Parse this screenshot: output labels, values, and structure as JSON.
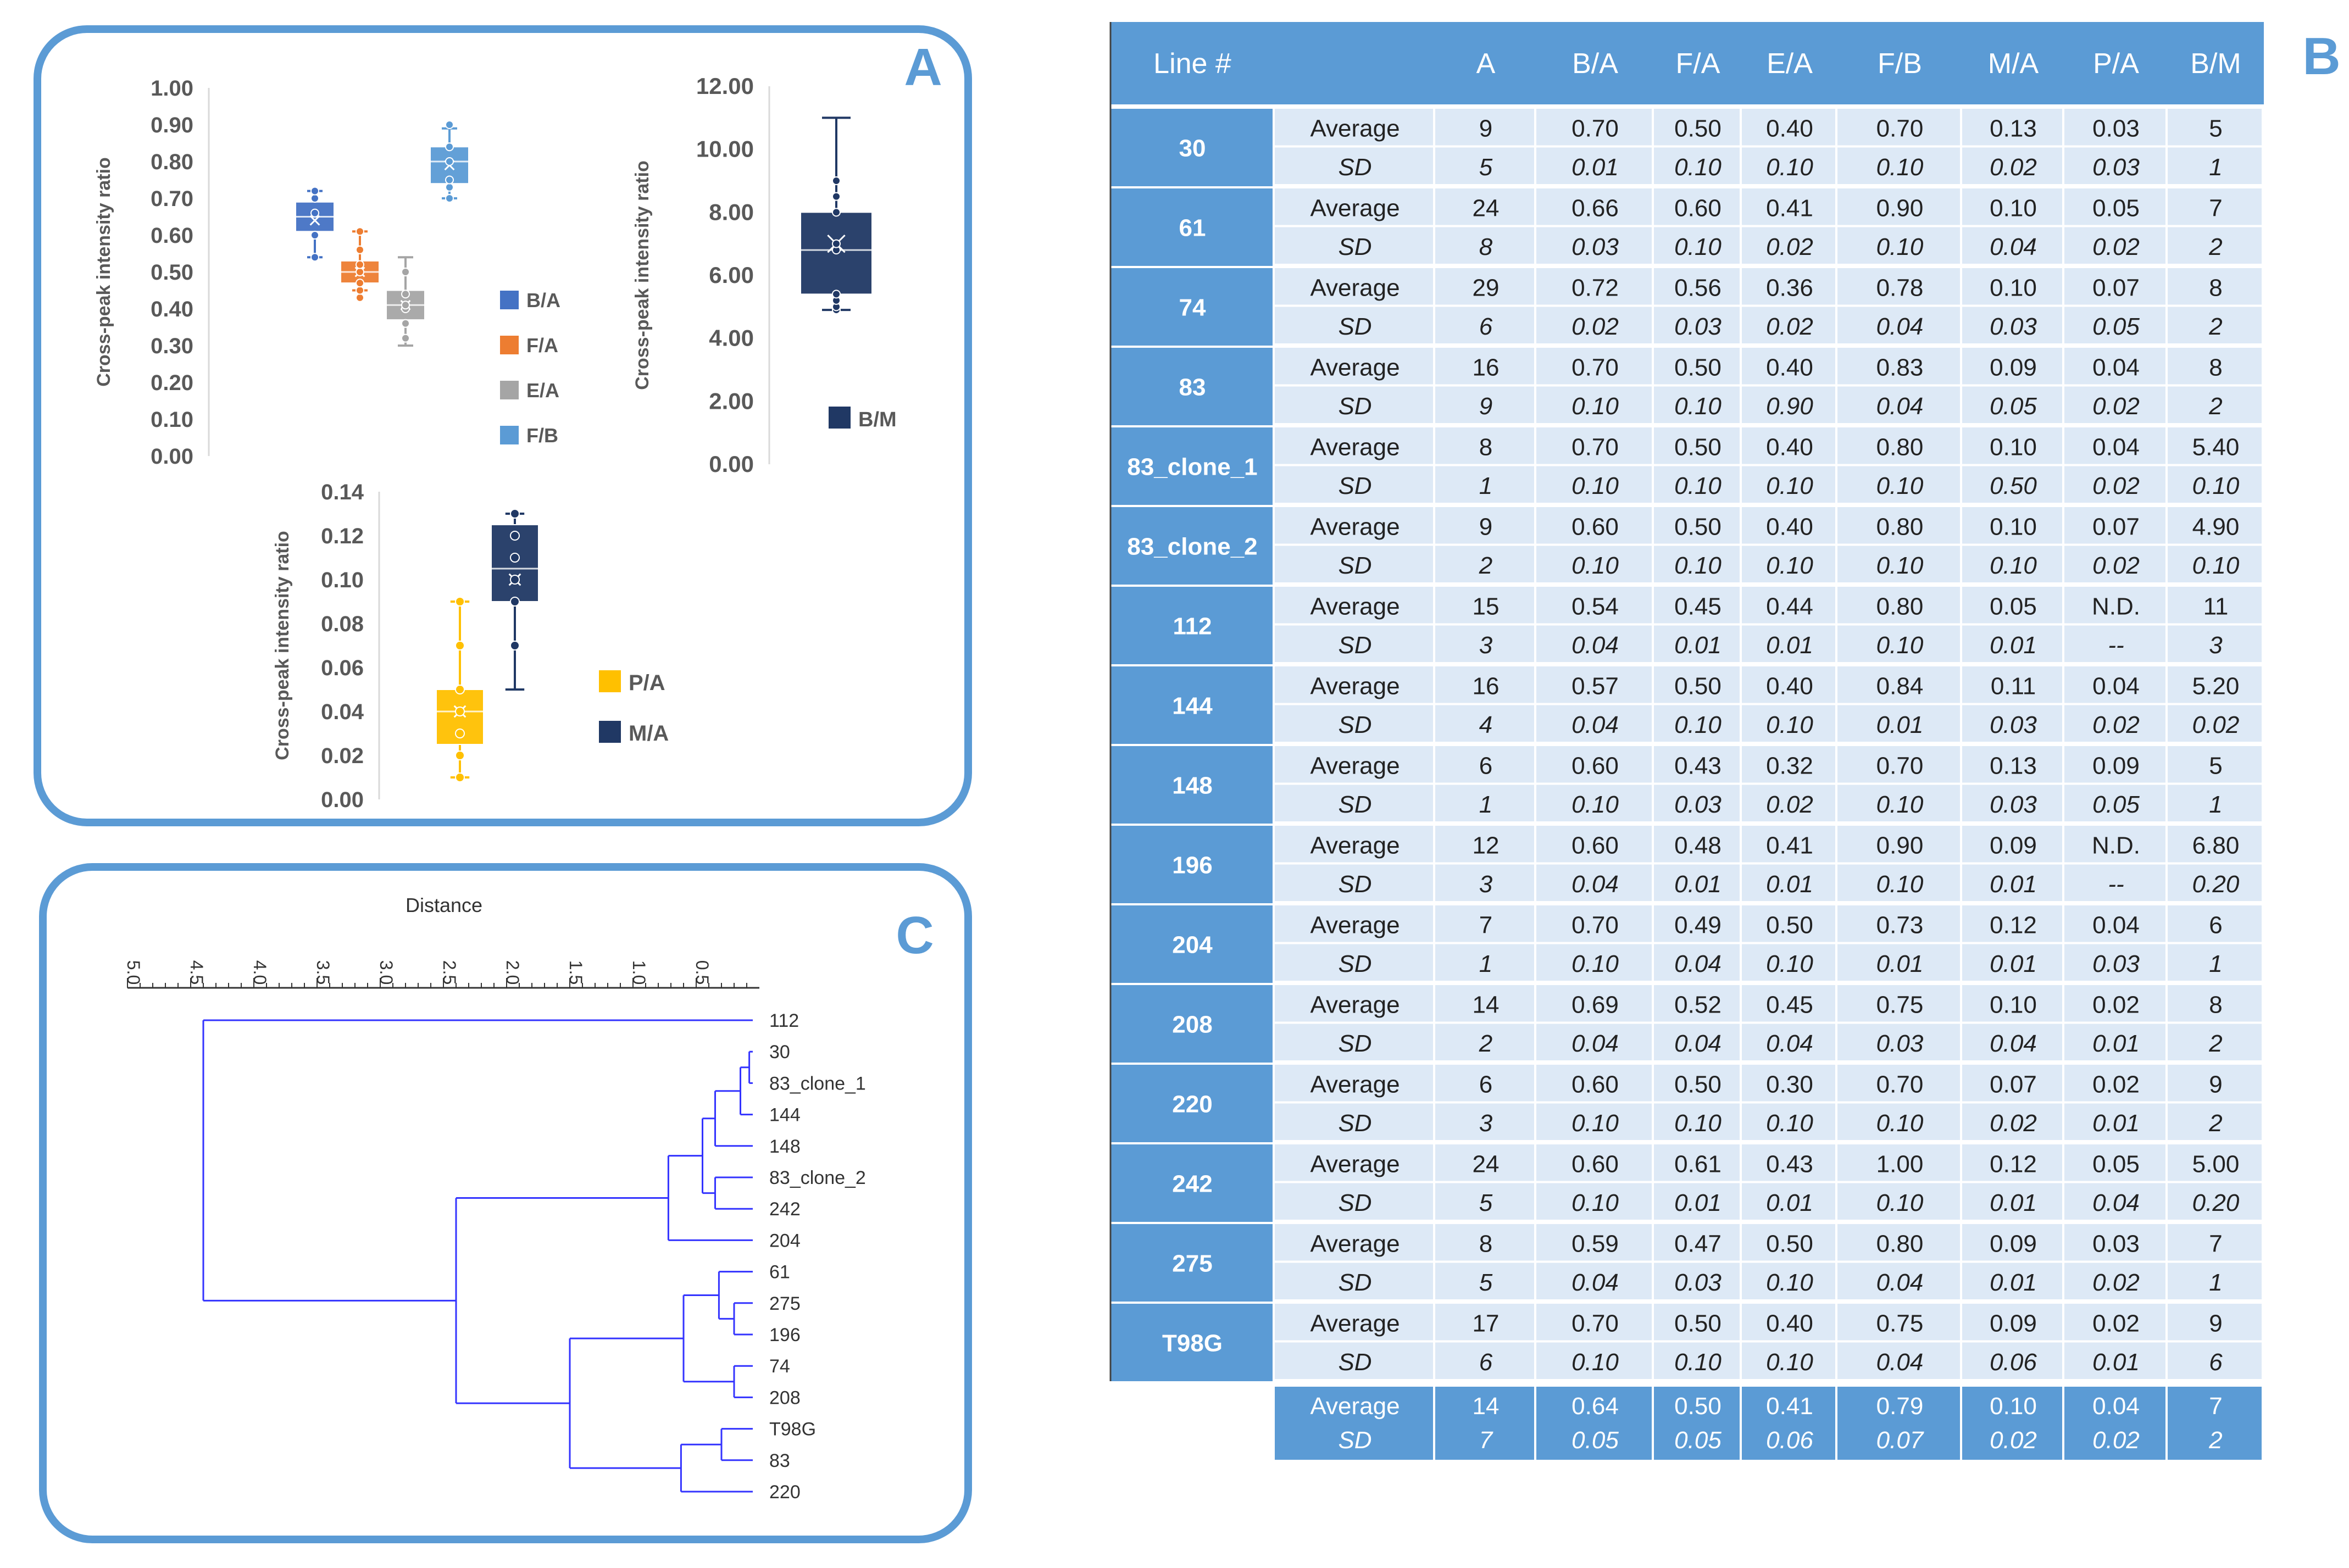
{
  "colors": {
    "panel_border": "#5b9bd5",
    "header_blue": "#5b9bd5",
    "row_light": "#dde9f6",
    "dendrogram_line": "#3333ff",
    "axis_gray": "#7f7f7f",
    "text_dark": "#595959",
    "panel_letter": "#5b9bd5",
    "ba": "#4472c4",
    "fa": "#ed7d31",
    "ea": "#a5a5a5",
    "fb": "#5b9bd5",
    "bm": "#203864",
    "pa": "#ffc000",
    "ma": "#203864"
  },
  "panel_labels": {
    "a": "A",
    "b": "B",
    "c": "C"
  },
  "chart_data": [
    {
      "id": "panel-a-ratios",
      "type": "box",
      "ylabel": "Cross-peak intensity ratio",
      "ylim": [
        0,
        1
      ],
      "yticks": [
        "0.00",
        "0.10",
        "0.20",
        "0.30",
        "0.40",
        "0.50",
        "0.60",
        "0.70",
        "0.80",
        "0.90",
        "1.00"
      ],
      "legend": [
        "B/A",
        "F/A",
        "E/A",
        "F/B"
      ],
      "series": [
        {
          "name": "B/A",
          "min": 0.54,
          "q1": 0.61,
          "median": 0.65,
          "q3": 0.69,
          "max": 0.72,
          "mean": 0.64,
          "points": [
            0.54,
            0.6,
            0.66,
            0.7,
            0.72
          ]
        },
        {
          "name": "F/A",
          "min": 0.45,
          "q1": 0.47,
          "median": 0.5,
          "q3": 0.53,
          "max": 0.61,
          "mean": 0.5,
          "points": [
            0.43,
            0.45,
            0.47,
            0.5,
            0.52,
            0.56,
            0.61
          ]
        },
        {
          "name": "E/A",
          "min": 0.3,
          "q1": 0.37,
          "median": 0.41,
          "q3": 0.45,
          "max": 0.54,
          "mean": 0.41,
          "points": [
            0.32,
            0.36,
            0.4,
            0.41,
            0.44,
            0.5
          ]
        },
        {
          "name": "F/B",
          "min": 0.7,
          "q1": 0.74,
          "median": 0.8,
          "q3": 0.84,
          "max": 0.89,
          "mean": 0.79,
          "points": [
            0.7,
            0.73,
            0.75,
            0.8,
            0.84,
            0.9
          ]
        }
      ]
    },
    {
      "id": "panel-a-bm",
      "type": "box",
      "ylabel": "Cross-peak intensity ratio",
      "ylim": [
        0,
        12
      ],
      "yticks": [
        "0.00",
        "2.00",
        "4.00",
        "6.00",
        "8.00",
        "10.00",
        "12.00"
      ],
      "legend": [
        "B/M"
      ],
      "series": [
        {
          "name": "B/M",
          "min": 4.9,
          "q1": 5.4,
          "median": 6.8,
          "q3": 8.0,
          "max": 11.0,
          "mean": 7.0,
          "points": [
            4.9,
            5.0,
            5.2,
            5.4,
            6.8,
            7.0,
            8.0,
            8.5,
            9.0
          ]
        }
      ]
    },
    {
      "id": "panel-a-small",
      "type": "box",
      "ylabel": "Cross-peak intensity ratio",
      "ylim": [
        0,
        0.14
      ],
      "yticks": [
        "0.00",
        "0.02",
        "0.04",
        "0.06",
        "0.08",
        "0.10",
        "0.12",
        "0.14"
      ],
      "legend": [
        "P/A",
        "M/A"
      ],
      "series": [
        {
          "name": "P/A",
          "min": 0.01,
          "q1": 0.025,
          "median": 0.04,
          "q3": 0.05,
          "max": 0.09,
          "mean": 0.04,
          "points": [
            0.01,
            0.02,
            0.03,
            0.04,
            0.05,
            0.07,
            0.09
          ]
        },
        {
          "name": "M/A",
          "min": 0.05,
          "q1": 0.09,
          "median": 0.105,
          "q3": 0.125,
          "max": 0.13,
          "mean": 0.1,
          "points": [
            0.07,
            0.09,
            0.1,
            0.11,
            0.12,
            0.13
          ]
        }
      ]
    },
    {
      "id": "panel-c-dendrogram",
      "type": "dendrogram",
      "xlabel": "Distance",
      "xlim": [
        0,
        5
      ],
      "xticks": [
        "5.0",
        "4.5",
        "4.0",
        "3.5",
        "3.0",
        "2.5",
        "2.0",
        "1.5",
        "1.0",
        "0.5"
      ],
      "leaves": [
        "112",
        "30",
        "83_clone_1",
        "144",
        "148",
        "83_clone_2",
        "242",
        "204",
        "61",
        "275",
        "196",
        "74",
        "208",
        "T98G",
        "83",
        "220"
      ]
    }
  ],
  "table": {
    "columns": [
      "Line #",
      "",
      "A",
      "B/A",
      "F/A",
      "E/A",
      "F/B",
      "M/A",
      "P/A",
      "B/M"
    ],
    "rows": [
      {
        "line": "30",
        "avg": [
          "9",
          "0.70",
          "0.50",
          "0.40",
          "0.70",
          "0.13",
          "0.03",
          "5"
        ],
        "sd": [
          "5",
          "0.01",
          "0.10",
          "0.10",
          "0.10",
          "0.02",
          "0.03",
          "1"
        ]
      },
      {
        "line": "61",
        "avg": [
          "24",
          "0.66",
          "0.60",
          "0.41",
          "0.90",
          "0.10",
          "0.05",
          "7"
        ],
        "sd": [
          "8",
          "0.03",
          "0.10",
          "0.02",
          "0.10",
          "0.04",
          "0.02",
          "2"
        ]
      },
      {
        "line": "74",
        "avg": [
          "29",
          "0.72",
          "0.56",
          "0.36",
          "0.78",
          "0.10",
          "0.07",
          "8"
        ],
        "sd": [
          "6",
          "0.02",
          "0.03",
          "0.02",
          "0.04",
          "0.03",
          "0.05",
          "2"
        ]
      },
      {
        "line": "83",
        "avg": [
          "16",
          "0.70",
          "0.50",
          "0.40",
          "0.83",
          "0.09",
          "0.04",
          "8"
        ],
        "sd": [
          "9",
          "0.10",
          "0.10",
          "0.90",
          "0.04",
          "0.05",
          "0.02",
          "2"
        ]
      },
      {
        "line": "83_clone_1",
        "avg": [
          "8",
          "0.70",
          "0.50",
          "0.40",
          "0.80",
          "0.10",
          "0.04",
          "5.40"
        ],
        "sd": [
          "1",
          "0.10",
          "0.10",
          "0.10",
          "0.10",
          "0.50",
          "0.02",
          "0.10"
        ]
      },
      {
        "line": "83_clone_2",
        "avg": [
          "9",
          "0.60",
          "0.50",
          "0.40",
          "0.80",
          "0.10",
          "0.07",
          "4.90"
        ],
        "sd": [
          "2",
          "0.10",
          "0.10",
          "0.10",
          "0.10",
          "0.10",
          "0.02",
          "0.10"
        ]
      },
      {
        "line": "112",
        "avg": [
          "15",
          "0.54",
          "0.45",
          "0.44",
          "0.80",
          "0.05",
          "N.D.",
          "11"
        ],
        "sd": [
          "3",
          "0.04",
          "0.01",
          "0.01",
          "0.10",
          "0.01",
          "--",
          "3"
        ]
      },
      {
        "line": "144",
        "avg": [
          "16",
          "0.57",
          "0.50",
          "0.40",
          "0.84",
          "0.11",
          "0.04",
          "5.20"
        ],
        "sd": [
          "4",
          "0.04",
          "0.10",
          "0.10",
          "0.01",
          "0.03",
          "0.02",
          "0.02"
        ]
      },
      {
        "line": "148",
        "avg": [
          "6",
          "0.60",
          "0.43",
          "0.32",
          "0.70",
          "0.13",
          "0.09",
          "5"
        ],
        "sd": [
          "1",
          "0.10",
          "0.03",
          "0.02",
          "0.10",
          "0.03",
          "0.05",
          "1"
        ]
      },
      {
        "line": "196",
        "avg": [
          "12",
          "0.60",
          "0.48",
          "0.41",
          "0.90",
          "0.09",
          "N.D.",
          "6.80"
        ],
        "sd": [
          "3",
          "0.04",
          "0.01",
          "0.01",
          "0.10",
          "0.01",
          "--",
          "0.20"
        ]
      },
      {
        "line": "204",
        "avg": [
          "7",
          "0.70",
          "0.49",
          "0.50",
          "0.73",
          "0.12",
          "0.04",
          "6"
        ],
        "sd": [
          "1",
          "0.10",
          "0.04",
          "0.10",
          "0.01",
          "0.01",
          "0.03",
          "1"
        ]
      },
      {
        "line": "208",
        "avg": [
          "14",
          "0.69",
          "0.52",
          "0.45",
          "0.75",
          "0.10",
          "0.02",
          "8"
        ],
        "sd": [
          "2",
          "0.04",
          "0.04",
          "0.04",
          "0.03",
          "0.04",
          "0.01",
          "2"
        ]
      },
      {
        "line": "220",
        "avg": [
          "6",
          "0.60",
          "0.50",
          "0.30",
          "0.70",
          "0.07",
          "0.02",
          "9"
        ],
        "sd": [
          "3",
          "0.10",
          "0.10",
          "0.10",
          "0.10",
          "0.02",
          "0.01",
          "2"
        ]
      },
      {
        "line": "242",
        "avg": [
          "24",
          "0.60",
          "0.61",
          "0.43",
          "1.00",
          "0.12",
          "0.05",
          "5.00"
        ],
        "sd": [
          "5",
          "0.10",
          "0.01",
          "0.01",
          "0.10",
          "0.01",
          "0.04",
          "0.20"
        ]
      },
      {
        "line": "275",
        "avg": [
          "8",
          "0.59",
          "0.47",
          "0.50",
          "0.80",
          "0.09",
          "0.03",
          "7"
        ],
        "sd": [
          "5",
          "0.04",
          "0.03",
          "0.10",
          "0.04",
          "0.01",
          "0.02",
          "1"
        ]
      },
      {
        "line": "T98G",
        "avg": [
          "17",
          "0.70",
          "0.50",
          "0.40",
          "0.75",
          "0.09",
          "0.02",
          "9"
        ],
        "sd": [
          "6",
          "0.10",
          "0.10",
          "0.10",
          "0.04",
          "0.06",
          "0.01",
          "6"
        ]
      }
    ],
    "avg_label": "Average",
    "sd_label": "SD",
    "summary": {
      "avg": [
        "14",
        "0.64",
        "0.50",
        "0.41",
        "0.79",
        "0.10",
        "0.04",
        "7"
      ],
      "sd": [
        "7",
        "0.05",
        "0.05",
        "0.06",
        "0.07",
        "0.02",
        "0.02",
        "2"
      ]
    }
  }
}
